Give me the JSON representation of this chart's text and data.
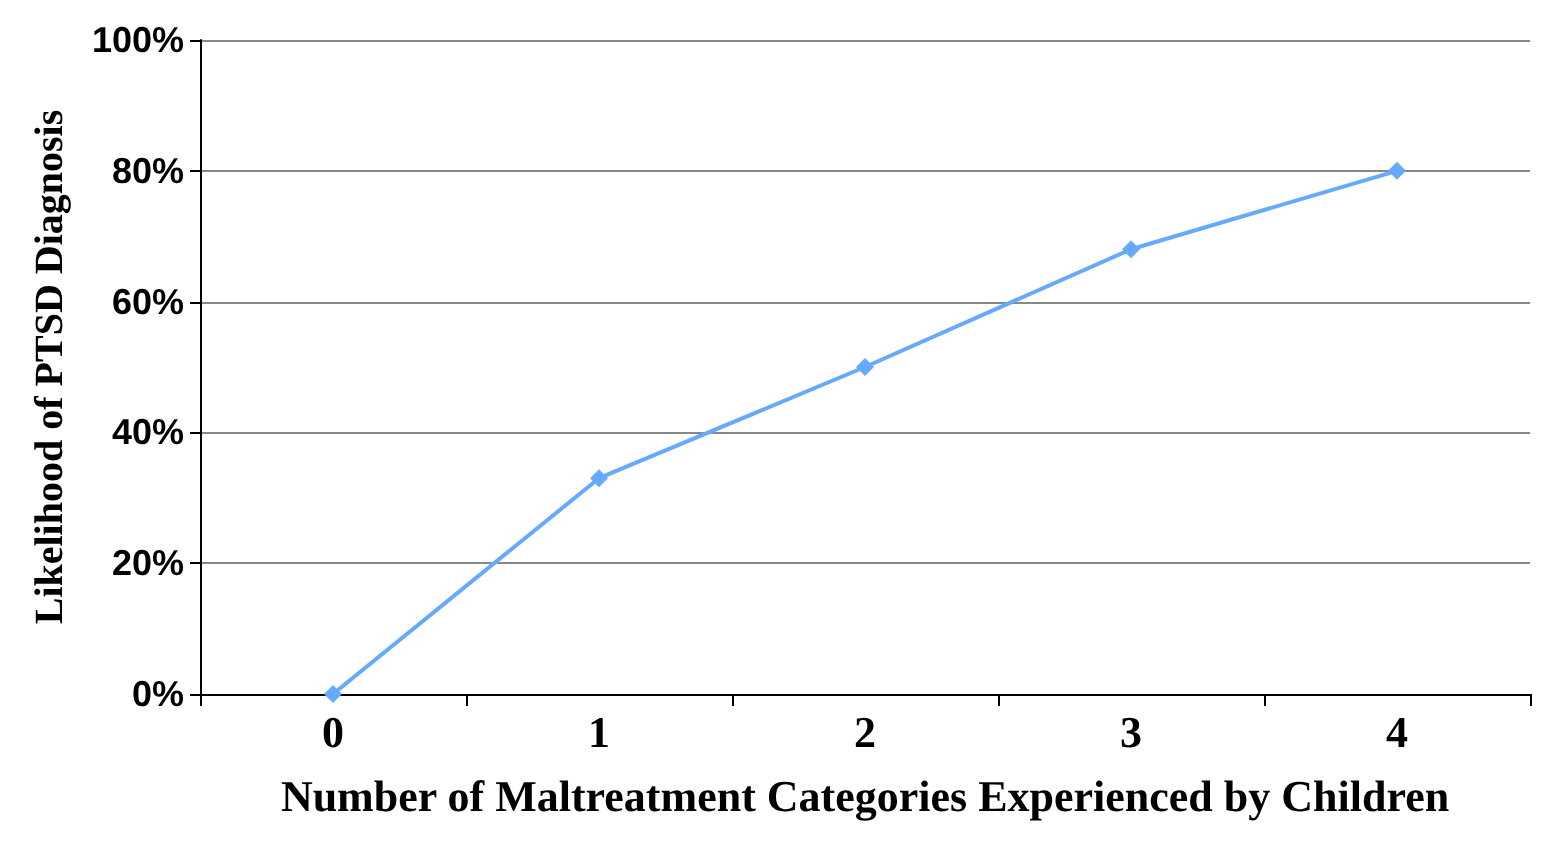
{
  "chart_data": {
    "type": "line",
    "xlabel": "Number of Maltreatment Categories Experienced by Children",
    "ylabel": "Likelihood of PTSD Diagnosis",
    "categories": [
      "0",
      "1",
      "2",
      "3",
      "4"
    ],
    "series": [
      {
        "color": "#66aaff",
        "values": [
          0,
          33,
          50,
          68,
          80
        ]
      }
    ],
    "ylim": [
      0,
      100
    ],
    "yticks": [
      {
        "value": 0,
        "label": "0%"
      },
      {
        "value": 20,
        "label": "20%"
      },
      {
        "value": 40,
        "label": "40%"
      },
      {
        "value": 60,
        "label": "60%"
      },
      {
        "value": 80,
        "label": "80%"
      },
      {
        "value": 100,
        "label": "100%"
      }
    ],
    "grid": "y",
    "marker": "diamond",
    "line_style": "solid"
  }
}
